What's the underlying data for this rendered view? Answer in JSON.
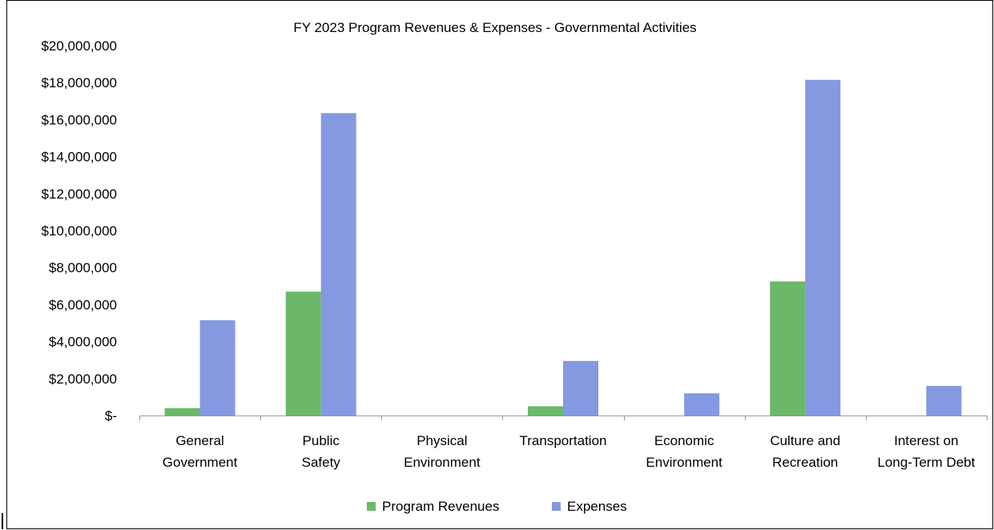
{
  "chart_data": {
    "type": "bar",
    "title": "FY 2023 Program Revenues & Expenses - Governmental Activities",
    "categories": [
      [
        "General",
        "Government"
      ],
      [
        "Public",
        "Safety"
      ],
      [
        "Physical",
        "Environment"
      ],
      [
        "Transportation"
      ],
      [
        "Economic",
        "Environment"
      ],
      [
        "Culture and",
        "Recreation"
      ],
      [
        "Interest on",
        "Long-Term Debt"
      ]
    ],
    "series": [
      {
        "name": "Program Revenues",
        "color": "#6bb86a",
        "values": [
          400000,
          6700000,
          0,
          500000,
          0,
          7250000,
          0
        ]
      },
      {
        "name": "Expenses",
        "color": "#8499e0",
        "values": [
          5150000,
          16350000,
          0,
          2950000,
          1200000,
          18150000,
          1600000
        ]
      }
    ],
    "ylim": [
      0,
      20000000
    ],
    "yticks": [
      {
        "value": 0,
        "label": "$-"
      },
      {
        "value": 2000000,
        "label": "$2,000,000"
      },
      {
        "value": 4000000,
        "label": "$4,000,000"
      },
      {
        "value": 6000000,
        "label": "$6,000,000"
      },
      {
        "value": 8000000,
        "label": "$8,000,000"
      },
      {
        "value": 10000000,
        "label": "$10,000,000"
      },
      {
        "value": 12000000,
        "label": "$12,000,000"
      },
      {
        "value": 14000000,
        "label": "$14,000,000"
      },
      {
        "value": 16000000,
        "label": "$16,000,000"
      },
      {
        "value": 18000000,
        "label": "$18,000,000"
      },
      {
        "value": 20000000,
        "label": "$20,000,000"
      }
    ],
    "grid": false,
    "legend_position": "bottom"
  }
}
